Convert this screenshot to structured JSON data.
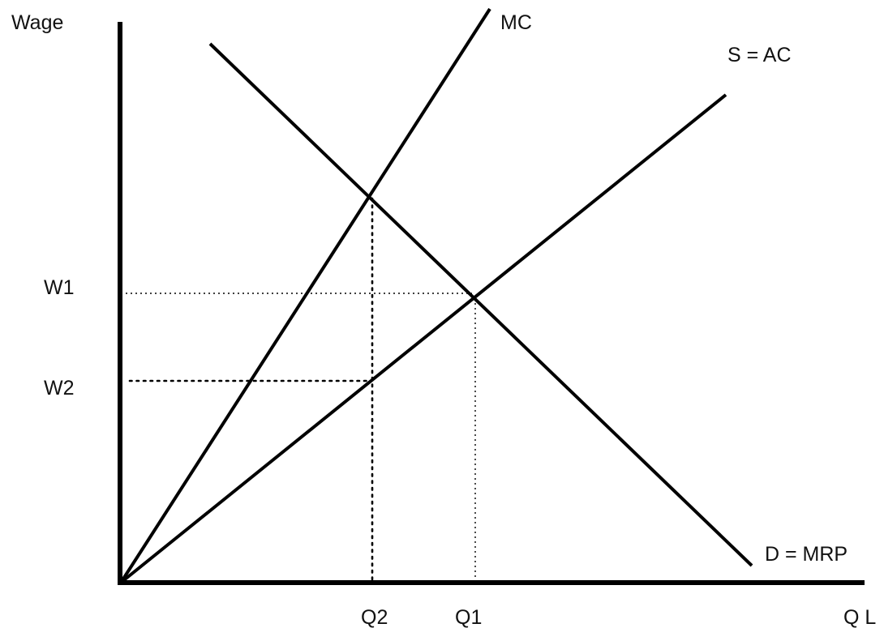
{
  "axes": {
    "y_label": "Wage",
    "x_label": "Q L"
  },
  "curves": {
    "mc_label": "MC",
    "supply_label": "S = AC",
    "demand_label": "D = MRP"
  },
  "levels": {
    "w1_label": "W1",
    "w2_label": "W2",
    "q2_label": "Q2",
    "q1_label": "Q1"
  }
}
